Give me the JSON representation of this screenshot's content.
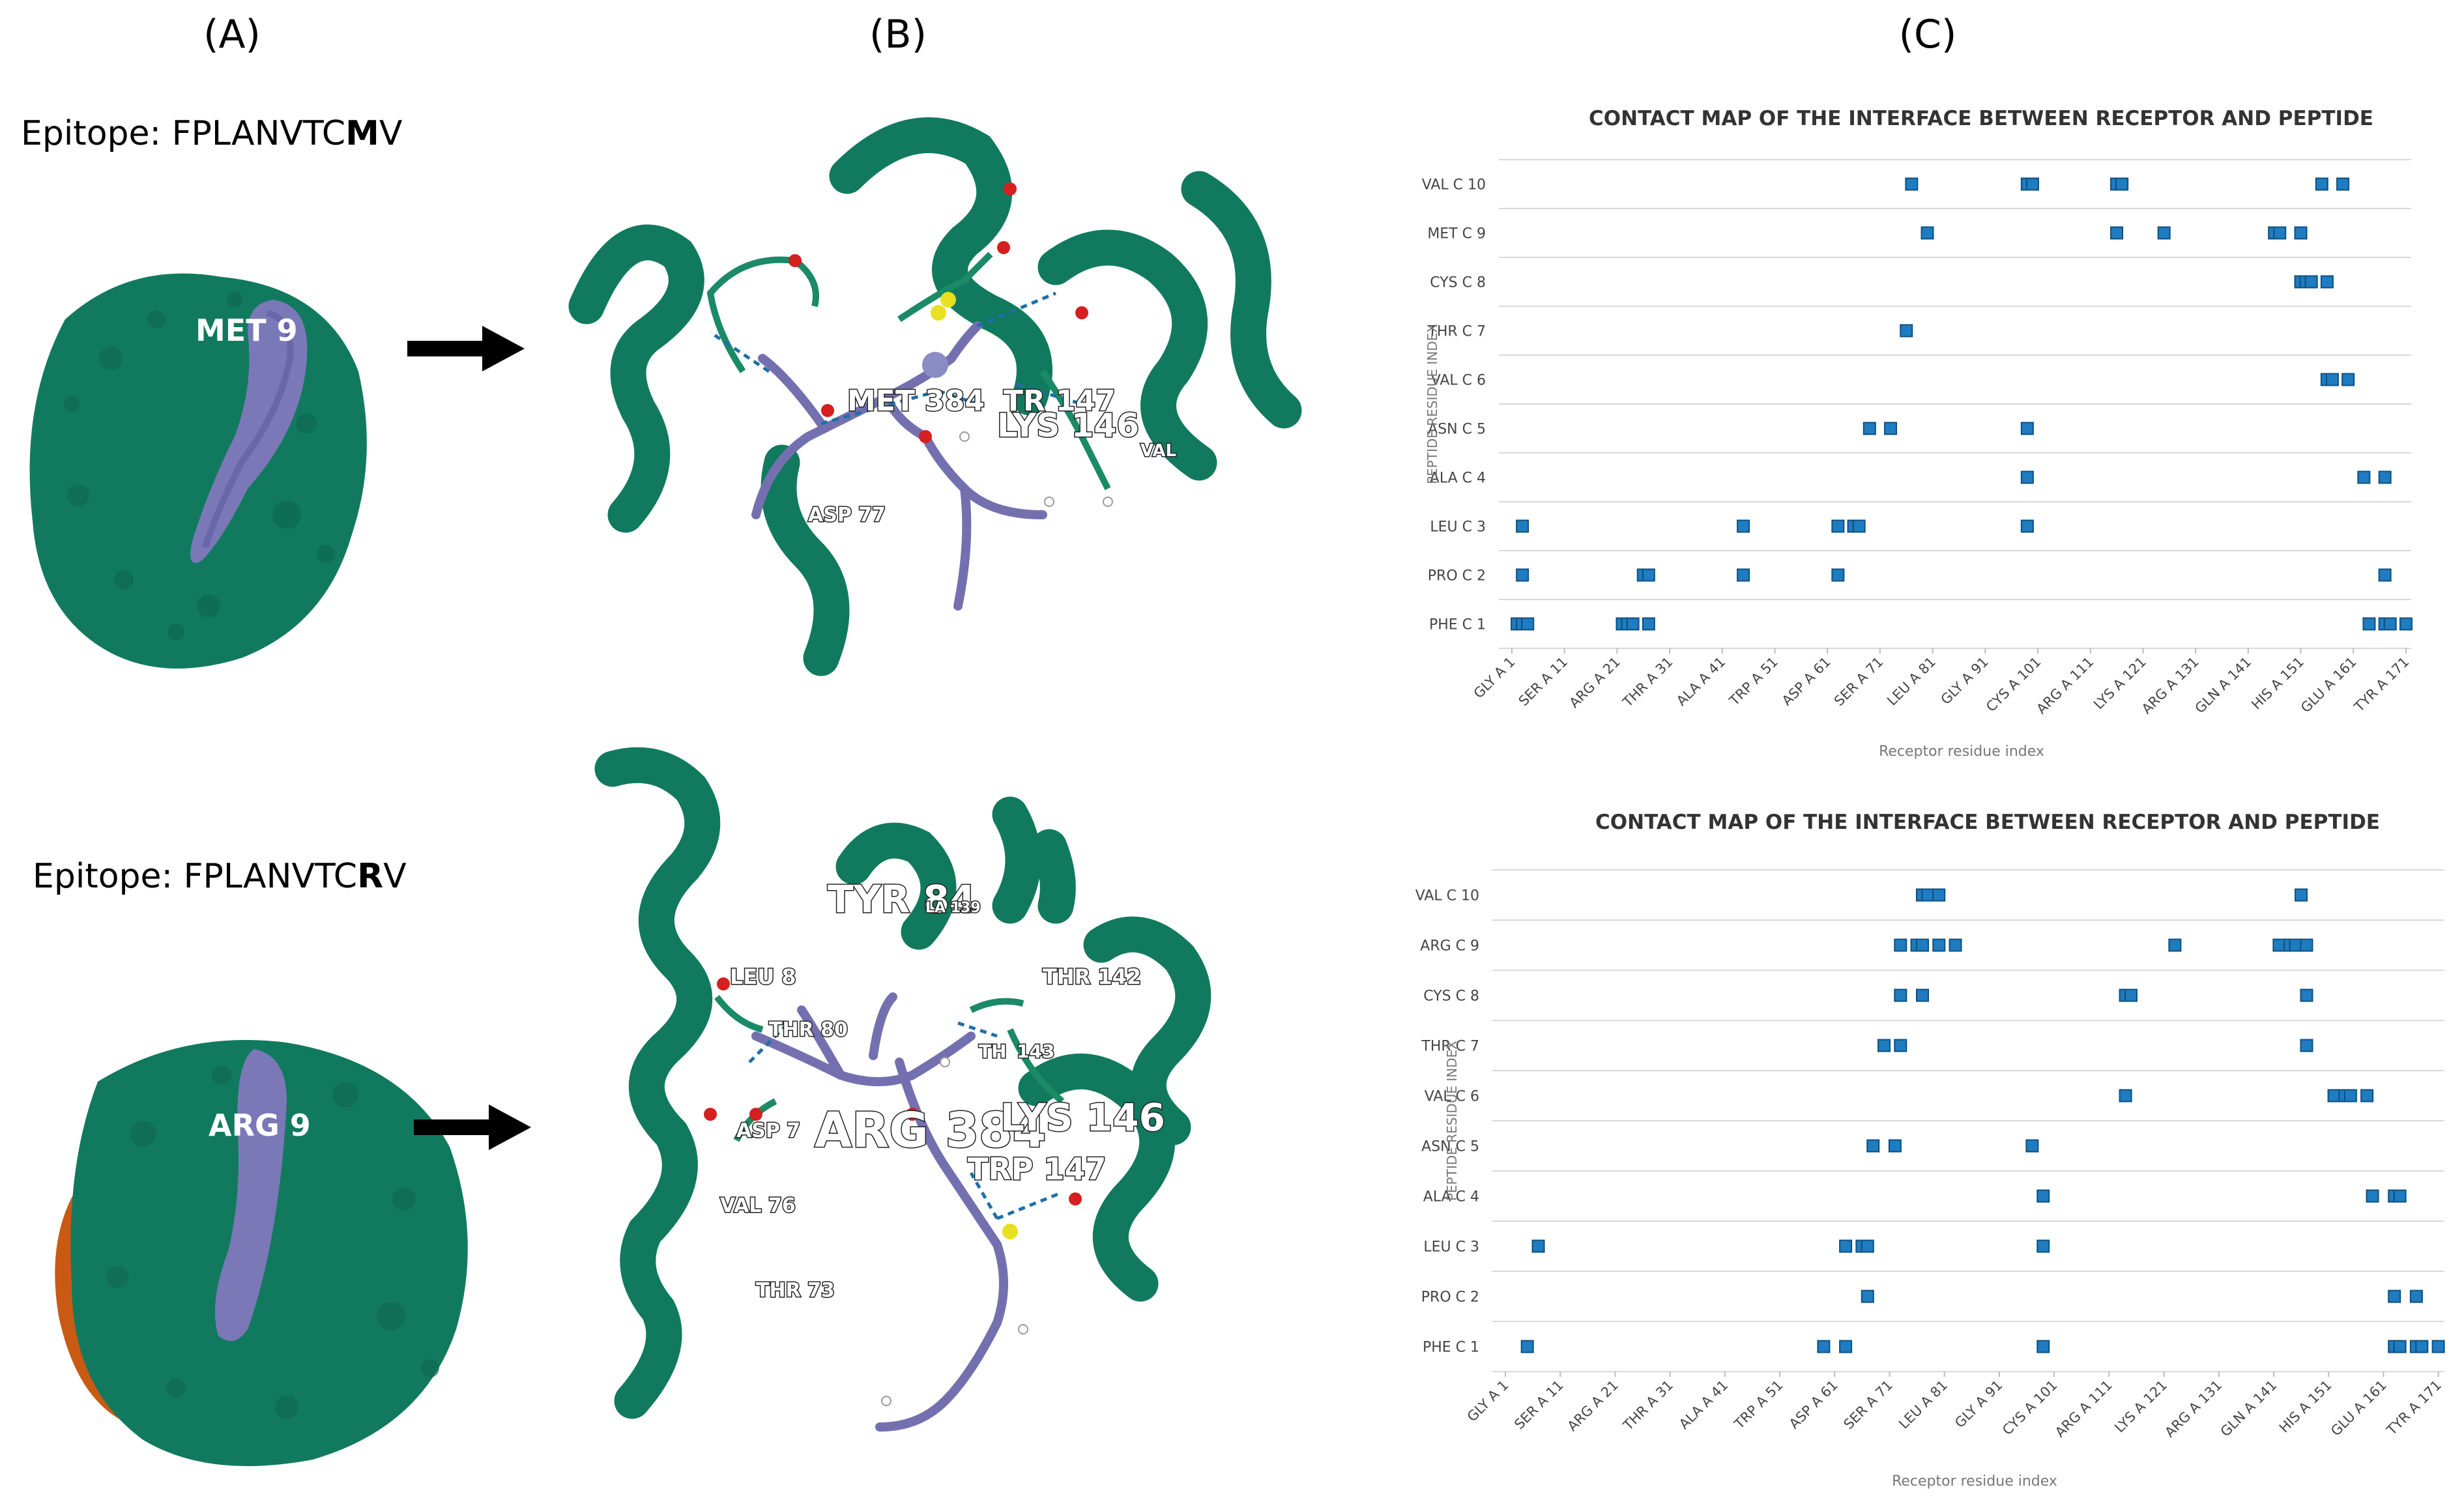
{
  "panels": {
    "a": {
      "label": "(A)"
    },
    "b": {
      "label": "(B)"
    },
    "c": {
      "label": "(C)"
    }
  },
  "row1": {
    "epitope_prefix": "Epitope: FPLANVTC",
    "epitope_bold": "M",
    "epitope_suffix": "V",
    "surface_label": "MET 9",
    "labels": [
      "MET 384",
      "TR",
      "147",
      "LYS 146",
      "VAL",
      "ASP 77"
    ]
  },
  "row2": {
    "epitope_prefix": "Epitope: FPLANVTC",
    "epitope_bold": "R",
    "epitope_suffix": "V",
    "surface_label": "ARG 9",
    "labels": [
      "TYR 84",
      "LA 139",
      "LEU 8",
      "THR 142",
      "THR 80",
      "TH",
      "143",
      "ASP 7",
      "ARG 384",
      "LYS 146",
      "TRP 147",
      "VAL 76",
      "THR 73"
    ]
  },
  "colors": {
    "protein": "#117a5e",
    "peptide": "#6a6aa8",
    "chainB": "#c85a14",
    "contact": "#1f7cc0"
  },
  "chart_data": [
    {
      "type": "heatmap",
      "title": "CONTACT MAP OF THE INTERFACE BETWEEN RECEPTOR AND PEPTIDE",
      "xlabel": "Receptor residue index",
      "ylabel": "PEPTIDE RESIDUE INDEX",
      "x_ticks": [
        "GLY A 1",
        "SER A 11",
        "ARG A 21",
        "THR A 31",
        "ALA A 41",
        "TRP A 51",
        "ASP A 61",
        "SER A 71",
        "LEU A 81",
        "GLY A 91",
        "CYS A 101",
        "ARG A 111",
        "LYS A 121",
        "ARG A 131",
        "GLN A 141",
        "HIS A 151",
        "GLU A 161",
        "TYR A 171"
      ],
      "y_labels": [
        "PHE C 1",
        "PRO C 2",
        "LEU C 3",
        "ALA C 4",
        "ASN C 5",
        "VAL C 6",
        "THR C 7",
        "CYS C 8",
        "MET C 9",
        "VAL C 10"
      ],
      "xlim": [
        1,
        172
      ],
      "points": [
        {
          "row": 10,
          "x": [
            77,
            99,
            100,
            116,
            117,
            155,
            159
          ]
        },
        {
          "row": 9,
          "x": [
            80,
            116,
            125,
            146,
            147,
            151
          ]
        },
        {
          "row": 8,
          "x": [
            151,
            152,
            153,
            156
          ]
        },
        {
          "row": 7,
          "x": [
            76
          ]
        },
        {
          "row": 6,
          "x": [
            156,
            157,
            160
          ]
        },
        {
          "row": 5,
          "x": [
            69,
            73,
            99
          ]
        },
        {
          "row": 4,
          "x": [
            99,
            163,
            167
          ]
        },
        {
          "row": 3,
          "x": [
            3,
            45,
            63,
            66,
            67,
            99
          ]
        },
        {
          "row": 2,
          "x": [
            3,
            26,
            27,
            45,
            63,
            167
          ]
        },
        {
          "row": 1,
          "x": [
            2,
            3,
            4,
            22,
            23,
            24,
            27,
            164,
            167,
            168,
            171
          ]
        }
      ]
    },
    {
      "type": "heatmap",
      "title": "CONTACT MAP OF THE INTERFACE BETWEEN RECEPTOR AND PEPTIDE",
      "xlabel": "Receptor residue index",
      "ylabel": "PEPTIDE RESIDUE INDEX",
      "x_ticks": [
        "GLY A 1",
        "SER A 11",
        "ARG A 21",
        "THR A 31",
        "ALA A 41",
        "TRP A 51",
        "ASP A 61",
        "SER A 71",
        "LEU A 81",
        "GLY A 91",
        "CYS A 101",
        "ARG A 111",
        "LYS A 121",
        "ARG A 131",
        "GLN A 141",
        "HIS A 151",
        "GLU A 161",
        "TYR A 171"
      ],
      "y_labels": [
        "PHE C 1",
        "PRO C 2",
        "LEU C 3",
        "ALA C 4",
        "ASN C 5",
        "VAL C 6",
        "THR C 7",
        "CYS C 8",
        "ARG C 9",
        "VAL C 10"
      ],
      "xlim": [
        1,
        172
      ],
      "points": [
        {
          "row": 10,
          "x": [
            77,
            78,
            80,
            146
          ]
        },
        {
          "row": 9,
          "x": [
            73,
            76,
            77,
            80,
            83,
            123,
            142,
            144,
            145,
            147
          ]
        },
        {
          "row": 8,
          "x": [
            73,
            77,
            114,
            115,
            147
          ]
        },
        {
          "row": 7,
          "x": [
            70,
            73,
            147
          ]
        },
        {
          "row": 6,
          "x": [
            114,
            152,
            154,
            155,
            158
          ]
        },
        {
          "row": 5,
          "x": [
            68,
            72,
            97
          ]
        },
        {
          "row": 4,
          "x": [
            99,
            159,
            163,
            164
          ]
        },
        {
          "row": 3,
          "x": [
            7,
            63,
            66,
            67,
            99
          ]
        },
        {
          "row": 2,
          "x": [
            67,
            163,
            167
          ]
        },
        {
          "row": 1,
          "x": [
            5,
            59,
            63,
            99,
            163,
            164,
            167,
            168,
            171
          ]
        }
      ]
    }
  ]
}
